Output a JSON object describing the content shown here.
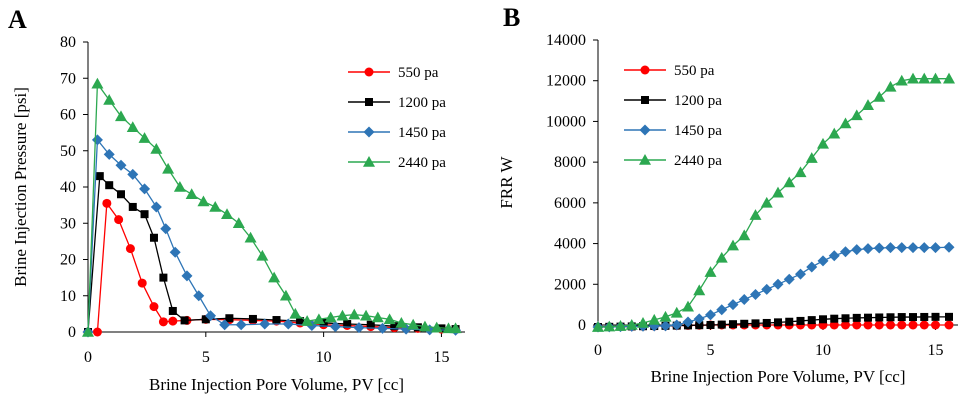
{
  "chart_data": [
    {
      "type": "line",
      "panel_label": "A",
      "xlabel": "Brine Injection Pore Volume, PV [cc]",
      "ylabel": "Brine Injection Pressure [psi]",
      "xlim": [
        0,
        16
      ],
      "ylim": [
        0,
        80
      ],
      "xticks": [
        0,
        5,
        10,
        15
      ],
      "yticks": [
        0,
        10,
        20,
        30,
        40,
        50,
        60,
        70,
        80
      ],
      "grid": false,
      "legend_position": "top-right",
      "series": [
        {
          "name": "550 pa",
          "color": "#ff0000",
          "marker": "circle",
          "x": [
            0,
            0.4,
            0.8,
            1.3,
            1.8,
            2.3,
            2.8,
            3.2,
            3.6,
            4.2,
            5,
            6,
            7,
            8,
            9,
            10,
            11,
            12,
            13,
            14,
            15,
            15.6
          ],
          "y": [
            0,
            0,
            35.5,
            31,
            23,
            13.5,
            7,
            2.8,
            3,
            3.2,
            3.5,
            3.4,
            3.2,
            3,
            2.5,
            2,
            1.8,
            1.5,
            1.2,
            1,
            0.8,
            0.7
          ]
        },
        {
          "name": "1200 pa",
          "color": "#000000",
          "marker": "square",
          "x": [
            0,
            0.5,
            0.9,
            1.4,
            1.9,
            2.4,
            2.8,
            3.2,
            3.6,
            4.1,
            5,
            6,
            7,
            8,
            9,
            10,
            11,
            12,
            13,
            14,
            15,
            15.6
          ],
          "y": [
            0,
            43,
            40.5,
            38,
            34.5,
            32.5,
            26,
            15,
            5.8,
            3.2,
            3.5,
            3.8,
            3.6,
            3.3,
            3,
            2.5,
            2.2,
            2,
            1.6,
            1.3,
            1,
            0.8
          ]
        },
        {
          "name": "1450 pa",
          "color": "#2e75b6",
          "marker": "diamond",
          "x": [
            0,
            0.4,
            0.9,
            1.4,
            1.9,
            2.4,
            2.9,
            3.3,
            3.7,
            4.2,
            4.7,
            5.2,
            5.8,
            6.5,
            7.5,
            8.5,
            9.5,
            10.5,
            11.5,
            12.5,
            13.5,
            14.5,
            15.6
          ],
          "y": [
            0,
            53,
            49,
            46,
            43.5,
            39.5,
            34.5,
            28.5,
            22,
            15.5,
            10,
            4.5,
            2,
            2,
            2.2,
            2.2,
            1.8,
            1.5,
            1.2,
            1,
            0.8,
            0.6,
            0.5
          ]
        },
        {
          "name": "2440 pa",
          "color": "#2ca850",
          "marker": "triangle",
          "x": [
            0,
            0.4,
            0.9,
            1.4,
            1.9,
            2.4,
            2.9,
            3.4,
            3.9,
            4.4,
            4.9,
            5.4,
            5.9,
            6.4,
            6.9,
            7.4,
            7.9,
            8.4,
            8.8,
            9.3,
            9.8,
            10.3,
            10.8,
            11.3,
            11.8,
            12.3,
            12.8,
            13.3,
            13.8,
            14.3,
            14.8,
            15.3,
            15.6
          ],
          "y": [
            0,
            68.5,
            64,
            59.5,
            56.5,
            53.5,
            50.5,
            45,
            40,
            38,
            36,
            34.5,
            32.5,
            30,
            26,
            21,
            15,
            10,
            5,
            3,
            3.5,
            4,
            4.5,
            4.8,
            4.5,
            4,
            3.5,
            2.5,
            2,
            1.5,
            1.2,
            1,
            1
          ]
        }
      ]
    },
    {
      "type": "line",
      "panel_label": "B",
      "xlabel": "Brine Injection Pore Volume, PV [cc]",
      "ylabel": "FRR W",
      "xlim": [
        0,
        16
      ],
      "ylim": [
        0,
        14000
      ],
      "xticks": [
        0,
        5,
        10,
        15
      ],
      "yticks": [
        0,
        2000,
        4000,
        6000,
        8000,
        10000,
        12000,
        14000
      ],
      "grid": false,
      "legend_position": "top-left",
      "series": [
        {
          "name": "550 pa",
          "color": "#ff0000",
          "marker": "circle",
          "x": [
            0,
            0.5,
            1,
            1.5,
            2,
            2.5,
            3,
            3.5,
            4,
            4.5,
            5,
            5.5,
            6,
            6.5,
            7,
            7.5,
            8,
            8.5,
            9,
            9.5,
            10,
            10.5,
            11,
            11.5,
            12,
            12.5,
            13,
            13.5,
            14,
            14.5,
            15,
            15.6
          ],
          "y": [
            -100,
            -90,
            -80,
            -70,
            -60,
            -50,
            -40,
            -30,
            -20,
            -10,
            0,
            0,
            0,
            0,
            0,
            0,
            0,
            0,
            0,
            0,
            0,
            0,
            0,
            0,
            0,
            0,
            0,
            0,
            0,
            0,
            0,
            0
          ]
        },
        {
          "name": "1200 pa",
          "color": "#000000",
          "marker": "square",
          "x": [
            0,
            0.5,
            1,
            1.5,
            2,
            2.5,
            3,
            3.5,
            4,
            4.5,
            5,
            5.5,
            6,
            6.5,
            7,
            7.5,
            8,
            8.5,
            9,
            9.5,
            10,
            10.5,
            11,
            11.5,
            12,
            12.5,
            13,
            13.5,
            14,
            14.5,
            15,
            15.6
          ],
          "y": [
            -100,
            -90,
            -80,
            -70,
            -60,
            -50,
            -40,
            -30,
            -20,
            -10,
            0,
            20,
            40,
            60,
            80,
            100,
            130,
            160,
            200,
            240,
            280,
            310,
            330,
            350,
            360,
            370,
            380,
            390,
            390,
            395,
            400,
            400
          ]
        },
        {
          "name": "1450 pa",
          "color": "#2e75b6",
          "marker": "diamond",
          "x": [
            0,
            0.5,
            1,
            1.5,
            2,
            2.5,
            3,
            3.5,
            4,
            4.5,
            5,
            5.5,
            6,
            6.5,
            7,
            7.5,
            8,
            8.5,
            9,
            9.5,
            10,
            10.5,
            11,
            11.5,
            12,
            12.5,
            13,
            13.5,
            14,
            14.5,
            15,
            15.6
          ],
          "y": [
            -100,
            -90,
            -80,
            -70,
            -60,
            -50,
            -40,
            0,
            150,
            300,
            500,
            750,
            1000,
            1250,
            1500,
            1750,
            2000,
            2250,
            2500,
            2850,
            3150,
            3400,
            3600,
            3700,
            3750,
            3780,
            3800,
            3800,
            3800,
            3800,
            3800,
            3820
          ]
        },
        {
          "name": "2440 pa",
          "color": "#2ca850",
          "marker": "triangle",
          "x": [
            0,
            0.5,
            1,
            1.5,
            2,
            2.5,
            3,
            3.5,
            4,
            4.5,
            5,
            5.5,
            6,
            6.5,
            7,
            7.5,
            8,
            8.5,
            9,
            9.5,
            10,
            10.5,
            11,
            11.5,
            12,
            12.5,
            13,
            13.5,
            14,
            14.5,
            15,
            15.6
          ],
          "y": [
            -100,
            -80,
            -50,
            0,
            100,
            250,
            400,
            600,
            900,
            1700,
            2600,
            3300,
            3900,
            4400,
            5400,
            6000,
            6500,
            7000,
            7500,
            8200,
            8900,
            9400,
            9900,
            10300,
            10800,
            11200,
            11700,
            12000,
            12100,
            12100,
            12100,
            12100
          ]
        }
      ]
    }
  ]
}
